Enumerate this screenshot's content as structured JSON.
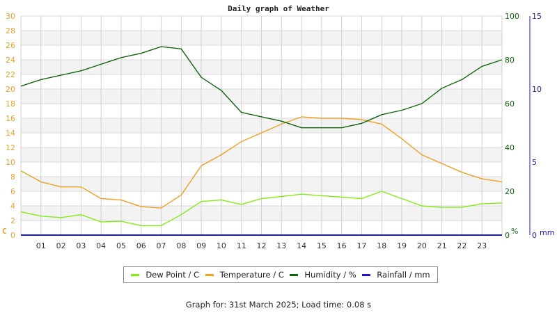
{
  "chart_data": {
    "type": "line",
    "title": "Daily graph of Weather",
    "xlabel": "",
    "x_unit": "hour",
    "x": [
      0,
      1,
      2,
      3,
      4,
      5,
      6,
      7,
      8,
      9,
      10,
      11,
      12,
      13,
      14,
      15,
      16,
      17,
      18,
      19,
      20,
      21,
      22,
      23,
      24
    ],
    "x_tick_labels": [
      "01",
      "02",
      "03",
      "04",
      "05",
      "06",
      "07",
      "08",
      "09",
      "10",
      "11",
      "12",
      "13",
      "14",
      "15",
      "16",
      "17",
      "18",
      "19",
      "20",
      "21",
      "22",
      "23"
    ],
    "axes": {
      "left": {
        "label": "C",
        "ylim": [
          0,
          30
        ],
        "ticks": [
          0,
          2,
          4,
          6,
          8,
          10,
          12,
          14,
          16,
          18,
          20,
          22,
          24,
          26,
          28,
          30
        ],
        "color": "#f0a020"
      },
      "right_humidity": {
        "label": "%",
        "ylim": [
          0,
          100
        ],
        "ticks": [
          0,
          20,
          40,
          60,
          80,
          100
        ],
        "color": "#116611"
      },
      "right_rain": {
        "label": "mm",
        "ylim": [
          0,
          15
        ],
        "ticks": [
          0,
          5,
          10,
          15
        ],
        "color": "#1a1acc"
      }
    },
    "grid": true,
    "legend_position": "bottom",
    "series": [
      {
        "name": "Dew Point / C",
        "color": "#80ee10",
        "axis": "left",
        "values": [
          3.2,
          2.6,
          2.4,
          2.8,
          1.8,
          1.9,
          1.3,
          1.3,
          2.8,
          4.6,
          4.8,
          4.2,
          5.0,
          5.3,
          5.6,
          5.4,
          5.2,
          5.0,
          6.0,
          5.0,
          4.0,
          3.8,
          3.8,
          4.3,
          4.4
        ]
      },
      {
        "name": "Temperature / C",
        "color": "#f0a020",
        "axis": "left",
        "values": [
          8.8,
          7.3,
          6.6,
          6.6,
          5.0,
          4.8,
          3.9,
          3.7,
          5.5,
          9.5,
          11.0,
          12.8,
          14.0,
          15.2,
          16.2,
          16.0,
          16.0,
          15.8,
          15.2,
          13.2,
          11.0,
          9.8,
          8.6,
          7.7,
          7.3
        ]
      },
      {
        "name": "Humidity / %",
        "color": "#116611",
        "axis": "right_humidity",
        "values": [
          68,
          71,
          73,
          75,
          78,
          81,
          83,
          86,
          85,
          72,
          66,
          56,
          54,
          52,
          49,
          49,
          49,
          51,
          55,
          57,
          60,
          67,
          71,
          77,
          80
        ]
      },
      {
        "name": "Rainfall / mm",
        "color": "#1a1acc",
        "axis": "right_rain",
        "values": [
          0,
          0,
          0,
          0,
          0,
          0,
          0,
          0,
          0,
          0,
          0,
          0,
          0,
          0,
          0,
          0,
          0,
          0,
          0,
          0,
          0,
          0,
          0,
          0,
          0
        ]
      }
    ]
  },
  "legend": {
    "dew_point": "Dew Point / C",
    "temperature": "Temperature / C",
    "humidity": "Humidity / %",
    "rainfall": "Rainfall / mm"
  },
  "footer": "Graph for: 31st March 2025; Load time: 0.08 s"
}
